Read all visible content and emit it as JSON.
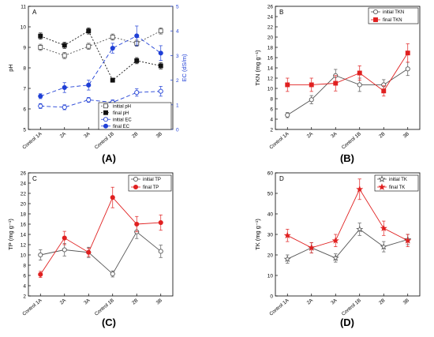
{
  "categories": [
    "Control 1A",
    "2A",
    "3A",
    "Control 1B",
    "2B",
    "3B"
  ],
  "chart_data": [
    {
      "type": "line",
      "panel_letter": "A",
      "caption": "(A)",
      "ylabel": "pH",
      "y2label": "EC (dS/m)",
      "ylim": [
        5,
        11
      ],
      "yticks": [
        5,
        6,
        7,
        8,
        9,
        10,
        11
      ],
      "y2lim": [
        0,
        5
      ],
      "y2ticks": [
        0,
        1,
        2,
        3,
        4,
        5
      ],
      "legend_position": "bottom-right",
      "categories": [
        "Control 1A",
        "2A",
        "3A",
        "Control 1B",
        "2B",
        "3B"
      ],
      "series": [
        {
          "name": "initial pH",
          "axis": "left",
          "values": [
            9.0,
            8.6,
            9.05,
            9.5,
            9.2,
            9.8
          ],
          "errors": [
            0.15,
            0.15,
            0.15,
            0.15,
            0.15,
            0.15
          ],
          "color": "#555555",
          "dash": "2,2",
          "marker": "square-open"
        },
        {
          "name": "final pH",
          "axis": "left",
          "values": [
            9.55,
            9.1,
            9.8,
            7.4,
            8.35,
            8.1
          ],
          "errors": [
            0.15,
            0.15,
            0.15,
            0.1,
            0.15,
            0.15
          ],
          "color": "#111111",
          "dash": "2,2",
          "marker": "square"
        },
        {
          "name": "initial EC",
          "axis": "right",
          "values": [
            0.95,
            0.9,
            1.2,
            1.1,
            1.5,
            1.55
          ],
          "errors": [
            0.1,
            0.1,
            0.1,
            0.1,
            0.15,
            0.2
          ],
          "color": "#1f3fd6",
          "dash": "5,3",
          "marker": "circle-open"
        },
        {
          "name": "final EC",
          "axis": "right",
          "values": [
            1.35,
            1.7,
            1.8,
            3.3,
            3.8,
            3.1
          ],
          "errors": [
            0.1,
            0.2,
            0.2,
            0.2,
            0.4,
            0.3
          ],
          "color": "#1f3fd6",
          "dash": "5,3",
          "marker": "circle"
        }
      ]
    },
    {
      "type": "line",
      "panel_letter": "B",
      "caption": "(B)",
      "ylabel": "TKN (mg g⁻¹)",
      "ylim": [
        2,
        26
      ],
      "yticks": [
        2,
        4,
        6,
        8,
        10,
        12,
        14,
        16,
        18,
        20,
        22,
        24,
        26
      ],
      "legend_position": "top-right",
      "categories": [
        "Control 1A",
        "2A",
        "3A",
        "Control 1B",
        "2B",
        "3B"
      ],
      "series": [
        {
          "name": "initial TKN",
          "values": [
            4.8,
            7.8,
            12.5,
            10.7,
            10.7,
            13.8
          ],
          "errors": [
            0.5,
            0.8,
            1.2,
            1.3,
            1.0,
            1.3
          ],
          "color": "#555555",
          "marker": "circle-open"
        },
        {
          "name": "final TKN",
          "values": [
            10.7,
            10.7,
            11.0,
            13.0,
            9.5,
            16.9
          ],
          "errors": [
            1.3,
            1.3,
            1.5,
            1.4,
            1.0,
            1.8
          ],
          "color": "#e02020",
          "marker": "square"
        }
      ]
    },
    {
      "type": "line",
      "panel_letter": "C",
      "caption": "(C)",
      "ylabel": "TP (mg g⁻¹)",
      "ylim": [
        2,
        26
      ],
      "yticks": [
        2,
        4,
        6,
        8,
        10,
        12,
        14,
        16,
        18,
        20,
        22,
        24,
        26
      ],
      "legend_position": "top-right",
      "categories": [
        "Control 1A",
        "2A",
        "3A",
        "Control 1B",
        "2B",
        "3B"
      ],
      "series": [
        {
          "name": "initial TP",
          "values": [
            10.0,
            11.0,
            10.5,
            6.3,
            14.5,
            10.7
          ],
          "errors": [
            1.0,
            1.2,
            1.0,
            0.6,
            1.3,
            1.2
          ],
          "color": "#555555",
          "marker": "circle-open"
        },
        {
          "name": "final TP",
          "values": [
            6.2,
            13.3,
            10.5,
            21.2,
            16.0,
            16.3
          ],
          "errors": [
            0.6,
            1.3,
            0.8,
            2.0,
            1.5,
            1.5
          ],
          "color": "#e02020",
          "marker": "circle"
        }
      ]
    },
    {
      "type": "line",
      "panel_letter": "D",
      "caption": "(D)",
      "ylabel": "TK (mg g⁻¹)",
      "ylim": [
        0,
        60
      ],
      "yticks": [
        0,
        10,
        20,
        30,
        40,
        50,
        60
      ],
      "legend_position": "top-right",
      "categories": [
        "Control 1A",
        "2A",
        "3A",
        "Control 1B",
        "2B",
        "3B"
      ],
      "series": [
        {
          "name": "initial TK",
          "values": [
            18.0,
            23.5,
            18.5,
            32.5,
            24.0,
            27.5
          ],
          "errors": [
            2.0,
            2.5,
            2.0,
            3.0,
            2.5,
            2.5
          ],
          "color": "#555555",
          "marker": "star-open"
        },
        {
          "name": "final TK",
          "values": [
            29.5,
            23.5,
            27.0,
            52.0,
            33.0,
            27.0
          ],
          "errors": [
            3.0,
            2.5,
            3.0,
            5.0,
            3.5,
            3.0
          ],
          "color": "#e02020",
          "marker": "star"
        }
      ]
    }
  ]
}
